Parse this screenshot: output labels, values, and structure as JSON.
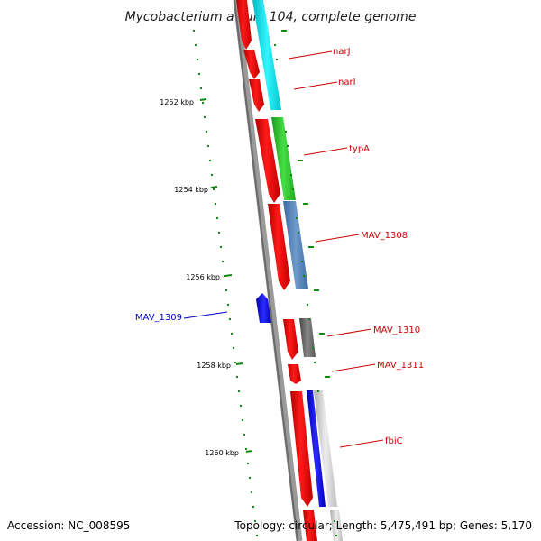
{
  "title": "Mycobacterium avium 104, complete genome",
  "footer": {
    "accession": "Accession: NC_008595",
    "topology": "Topology: circular; Length: 5,475,491 bp; Genes: 5,170"
  },
  "scale_labels": [
    "1252 kbp",
    "1254 kbp",
    "1256 kbp",
    "1258 kbp",
    "1260 kbp"
  ],
  "gene_labels": [
    {
      "name": "narJ",
      "color": "#cc0000"
    },
    {
      "name": "narI",
      "color": "#cc0000"
    },
    {
      "name": "typA",
      "color": "#cc0000"
    },
    {
      "name": "MAV_1308",
      "color": "#cc0000"
    },
    {
      "name": "MAV_1309",
      "color": "#0000cc"
    },
    {
      "name": "MAV_1310",
      "color": "#cc0000"
    },
    {
      "name": "MAV_1311",
      "color": "#cc0000"
    },
    {
      "name": "fbiC",
      "color": "#cc0000"
    }
  ],
  "colors": {
    "forward_cds": "#ff0000",
    "reverse_cds": "#0000ee",
    "backbone": "#808080",
    "scale_ticks": "#118811",
    "cyan_track": "#00e5ee",
    "green_track": "#33cc33",
    "steelblue_track": "#4f7fb5",
    "gray_track": "#666666",
    "lightgray_track": "#cccccc"
  }
}
